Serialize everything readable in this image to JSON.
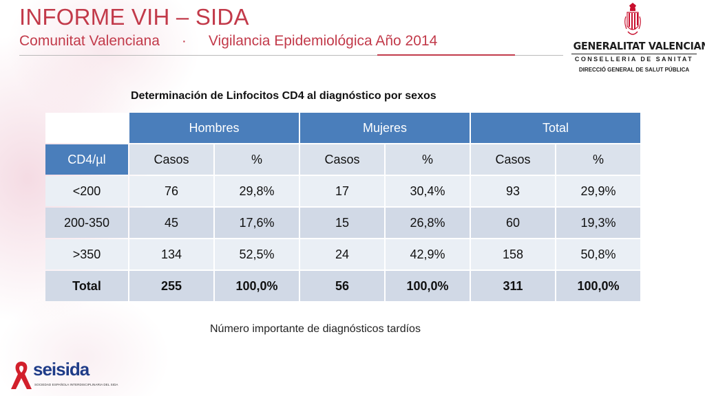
{
  "header": {
    "title": "INFORME VIH – SIDA",
    "subtitle_region": "Comunitat Valenciana",
    "subtitle_separator": "·",
    "subtitle_topic": "Vigilancia Epidemiológica Año 2014"
  },
  "logo_gv": {
    "name": "GENERALITAT VALENCIANA",
    "department": "CONSELLERIA DE SANITAT",
    "directorate": "DIRECCIÓ GENERAL DE SALUT PÚBLICA",
    "crest_icon": "coat-of-arms-icon"
  },
  "table": {
    "caption": "Determinación de Linfocitos CD4 al diagnóstico por sexos",
    "groups": [
      "Hombres",
      "Mujeres",
      "Total"
    ],
    "row_label_header": "CD4/µl",
    "sub_headers": [
      "Casos",
      "%",
      "Casos",
      "%",
      "Casos",
      "%"
    ],
    "rows": [
      {
        "label": "<200",
        "cells": [
          "76",
          "29,8%",
          "17",
          "30,4%",
          "93",
          "29,9%"
        ]
      },
      {
        "label": "200-350",
        "cells": [
          "45",
          "17,6%",
          "15",
          "26,8%",
          "60",
          "19,3%"
        ]
      },
      {
        "label": ">350",
        "cells": [
          "134",
          "52,5%",
          "24",
          "42,9%",
          "158",
          "50,8%"
        ]
      },
      {
        "label": "Total",
        "cells": [
          "255",
          "100,0%",
          "56",
          "100,0%",
          "311",
          "100,0%"
        ]
      }
    ]
  },
  "note": "Número importante de diagnósticos tardíos",
  "logo_seisida": {
    "word_prefix": "sei",
    "word_suffix": "sida",
    "tagline": "SOCIEDAD ESPAÑOLA INTERDISCIPLINARIA DEL SIDA",
    "ribbon_icon": "red-ribbon-icon"
  },
  "colors": {
    "title_red": "#c23a4a",
    "header_blue": "#4a7ebb",
    "row_light": "#eaeff5",
    "row_dark": "#d1d9e6"
  }
}
